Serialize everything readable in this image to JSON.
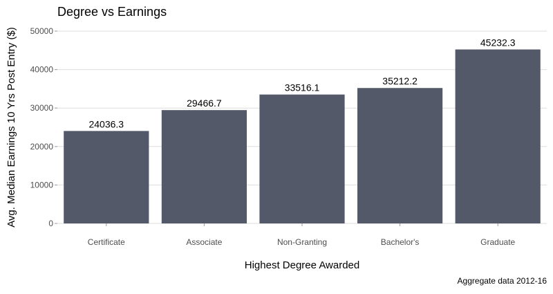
{
  "chart_data": {
    "type": "bar",
    "title": "Degree vs Earnings",
    "xlabel": "Highest Degree Awarded",
    "ylabel": "Avg. Median Earnings 10 Yrs Post Entry ($)",
    "caption": "Aggregate data 2012-16",
    "categories": [
      "Certificate",
      "Associate",
      "Non-Granting",
      "Bachelor's",
      "Graduate"
    ],
    "values": [
      24036.3,
      29466.7,
      33516.1,
      35212.2,
      45232.3
    ],
    "value_labels": [
      "24036.3",
      "29466.7",
      "33516.1",
      "35212.2",
      "45232.3"
    ],
    "ylim": [
      0,
      50000
    ],
    "yticks": [
      0,
      10000,
      20000,
      30000,
      40000,
      50000
    ],
    "ytick_labels": [
      "0",
      "10000",
      "20000",
      "30000",
      "40000",
      "50000"
    ],
    "grid": true,
    "legend": "none",
    "colors": {
      "bar": "#535969",
      "grid": "#dddddd",
      "text": "#000000",
      "tick_text": "#4d4d4d"
    }
  }
}
